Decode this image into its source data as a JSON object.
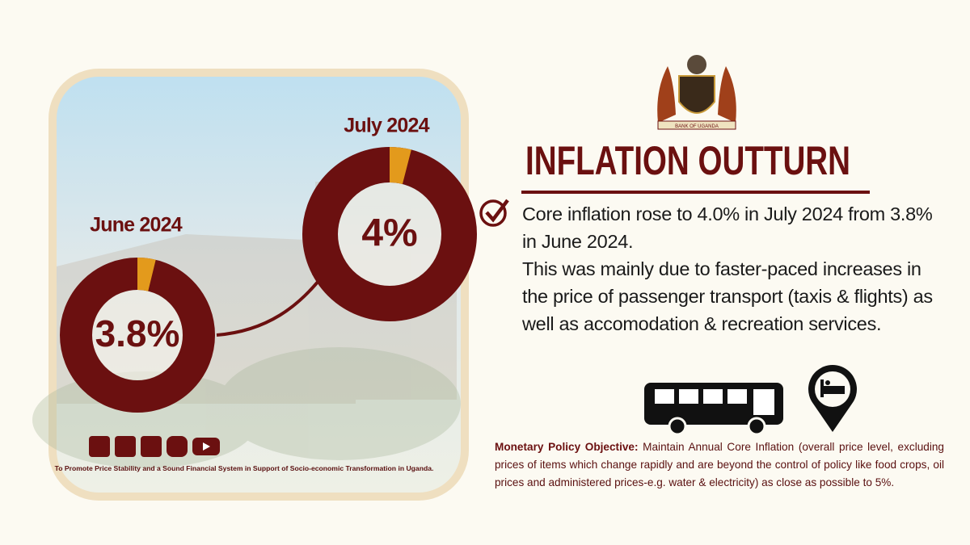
{
  "header": {
    "title": "INFLATION OUTTURN",
    "logo_caption": "BANK OF UGANDA"
  },
  "gauges": [
    {
      "label": "June 2024",
      "value": 3.8,
      "value_label": "3.8%"
    },
    {
      "label": "July 2024",
      "value": 4,
      "value_label": "4%"
    }
  ],
  "body": [
    "Core inflation rose to 4.0% in July 2024 from 3.8% in June 2024.",
    "This was mainly due to faster-paced increases in the price of passenger transport (taxis & flights) as well as accomodation & recreation services."
  ],
  "objective": {
    "label": "Monetary Policy Objective:",
    "text": "Maintain Annual Core Inflation (overall price level, excluding prices of items which change rapidly and are beyond the control of policy like food crops, oil prices and administered prices-e.g. water & electricity) as close as possible to 5%."
  },
  "footer": "To Promote Price Stability and a Sound Financial System in Support of Socio-economic Transformation in Uganda."
}
